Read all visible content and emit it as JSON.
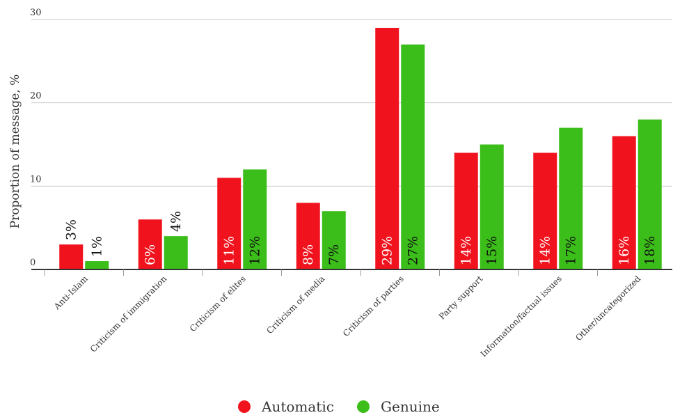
{
  "chart_data": {
    "type": "bar",
    "ylabel": "Proportion of message, %",
    "xlabel": "",
    "ylim": [
      0,
      30
    ],
    "yticks": [
      0,
      10,
      20,
      30
    ],
    "grid": true,
    "legend_position": "bottom-center",
    "categories": [
      "Anti-Islam",
      "Criticism of immigration",
      "Criticism of elites",
      "Criticism of media",
      "Criticism of parties",
      "Party support",
      "Information/factual issues",
      "Other/uncategorized"
    ],
    "series": [
      {
        "name": "Automatic",
        "color": "#f0131e",
        "values": [
          3,
          6,
          11,
          8,
          29,
          14,
          14,
          16
        ],
        "labels": [
          "3%",
          "6%",
          "11%",
          "8%",
          "29%",
          "14%",
          "14%",
          "16%"
        ]
      },
      {
        "name": "Genuine",
        "color": "#3cbe1a",
        "values": [
          1,
          4,
          12,
          7,
          27,
          15,
          17,
          18
        ],
        "labels": [
          "1%",
          "4%",
          "12%",
          "7%",
          "27%",
          "15%",
          "17%",
          "18%"
        ]
      }
    ]
  }
}
